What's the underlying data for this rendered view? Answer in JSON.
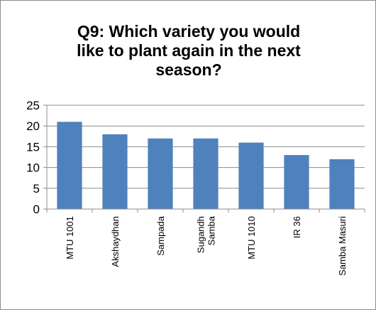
{
  "chart_data": {
    "type": "bar",
    "title_lines": [
      "Q9: Which variety you would",
      "like to plant again in the next",
      "season?"
    ],
    "categories": [
      [
        "MTU 1001"
      ],
      [
        "Akshaydhan"
      ],
      [
        "Sampada"
      ],
      [
        "Sugandh",
        "Samba"
      ],
      [
        "MTU 1010"
      ],
      [
        "IR 36"
      ],
      [
        "Samba Masuri"
      ]
    ],
    "values": [
      21,
      18,
      17,
      17,
      16,
      13,
      12
    ],
    "ylim": [
      0,
      25
    ],
    "yticks": [
      0,
      5,
      10,
      15,
      20,
      25
    ],
    "grid": true,
    "legend": "none",
    "bar_color": "#4f81bd"
  }
}
